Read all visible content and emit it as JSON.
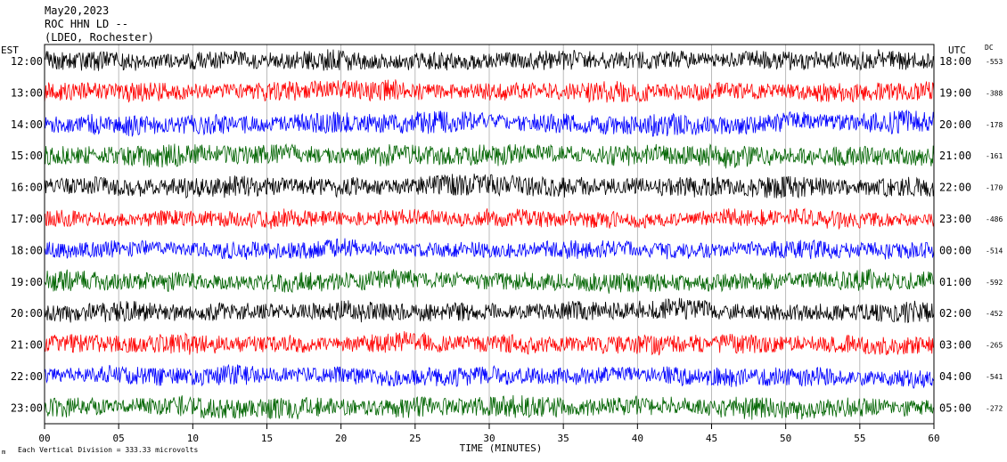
{
  "header": {
    "date": "May20,2023",
    "station": "ROC HHN LD --",
    "network": "(LDEO, Rochester)"
  },
  "left_axis_label": "EST",
  "right_axis_label": "UTC",
  "dc_label": "DC",
  "footer": {
    "scale_note": "Each Vertical Division =  333.33 microvolts",
    "logo_mark": "m"
  },
  "chart_data": {
    "type": "line",
    "title": "",
    "xlabel": "TIME (MINUTES)",
    "ylabel": "",
    "xlim": [
      0,
      60
    ],
    "x_ticks": [
      "00",
      "05",
      "10",
      "15",
      "20",
      "25",
      "30",
      "35",
      "40",
      "45",
      "50",
      "55",
      "60"
    ],
    "grid": true,
    "scale_microvolts_per_division": 333.33,
    "series_colors": [
      "#000000",
      "#ff0000",
      "#0000ff",
      "#006400"
    ],
    "traces": [
      {
        "est": "12:00",
        "utc": "18:00",
        "dc": "-553",
        "color": "#000000",
        "amplitude": 0.55
      },
      {
        "est": "13:00",
        "utc": "19:00",
        "dc": "-388",
        "color": "#ff0000",
        "amplitude": 0.55
      },
      {
        "est": "14:00",
        "utc": "20:00",
        "dc": "-178",
        "color": "#0000ff",
        "amplitude": 0.6
      },
      {
        "est": "15:00",
        "utc": "21:00",
        "dc": "-161",
        "color": "#006400",
        "amplitude": 0.6
      },
      {
        "est": "16:00",
        "utc": "22:00",
        "dc": "-170",
        "color": "#000000",
        "amplitude": 0.6
      },
      {
        "est": "17:00",
        "utc": "23:00",
        "dc": "-486",
        "color": "#ff0000",
        "amplitude": 0.5
      },
      {
        "est": "18:00",
        "utc": "00:00",
        "dc": "-514",
        "color": "#0000ff",
        "amplitude": 0.5
      },
      {
        "est": "19:00",
        "utc": "01:00",
        "dc": "-592",
        "color": "#006400",
        "amplitude": 0.55
      },
      {
        "est": "20:00",
        "utc": "02:00",
        "dc": "-452",
        "color": "#000000",
        "amplitude": 0.55
      },
      {
        "est": "21:00",
        "utc": "03:00",
        "dc": "-265",
        "color": "#ff0000",
        "amplitude": 0.55
      },
      {
        "est": "22:00",
        "utc": "04:00",
        "dc": "-541",
        "color": "#0000ff",
        "amplitude": 0.55
      },
      {
        "est": "23:00",
        "utc": "05:00",
        "dc": "-272",
        "color": "#006400",
        "amplitude": 0.6
      }
    ]
  }
}
